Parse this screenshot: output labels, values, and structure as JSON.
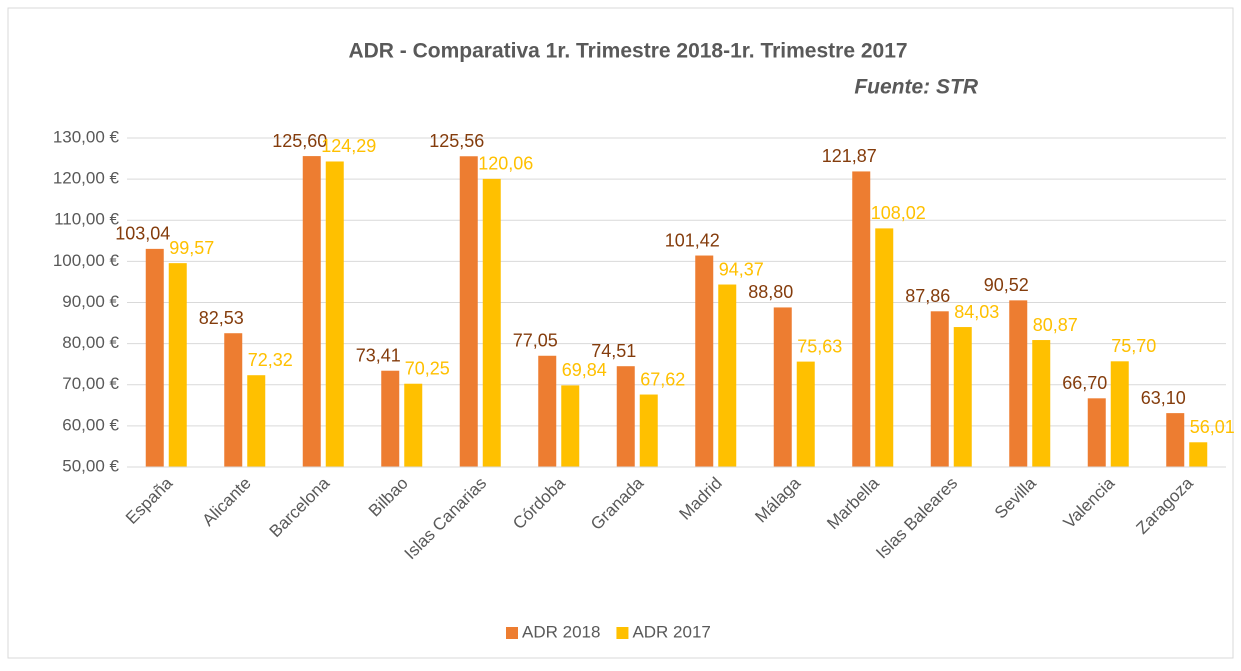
{
  "chart_data": {
    "type": "bar",
    "title": "ADR - Comparativa 1r. Trimestre 2018-1r. Trimestre 2017",
    "subtitle": "Fuente: STR",
    "categories": [
      "España",
      "Alicante",
      "Barcelona",
      "Bilbao",
      "Islas Canarias",
      "Córdoba",
      "Granada",
      "Madrid",
      "Málaga",
      "Marbella",
      "Islas Baleares",
      "Sevilla",
      "Valencia",
      "Zaragoza"
    ],
    "series": [
      {
        "name": "ADR 2018",
        "color": "#ed7d31",
        "label_color": "#843c0c",
        "values": [
          103.04,
          82.53,
          125.6,
          73.41,
          125.56,
          77.05,
          74.51,
          101.42,
          88.8,
          121.87,
          87.86,
          90.52,
          66.7,
          63.1
        ],
        "value_labels": [
          "103,04",
          "82,53",
          "125,60",
          "73,41",
          "125,56",
          "77,05",
          "74,51",
          "101,42",
          "88,80",
          "121,87",
          "87,86",
          "90,52",
          "66,70",
          "63,10"
        ]
      },
      {
        "name": "ADR 2017",
        "color": "#ffc000",
        "label_color": "#ffc000",
        "values": [
          99.57,
          72.32,
          124.29,
          70.25,
          120.06,
          69.84,
          67.62,
          94.37,
          75.63,
          108.02,
          84.03,
          80.87,
          75.7,
          56.01
        ],
        "value_labels": [
          "99,57",
          "72,32",
          "124,29",
          "70,25",
          "120,06",
          "69,84",
          "67,62",
          "94,37",
          "75,63",
          "108,02",
          "84,03",
          "80,87",
          "75,70",
          "56,01"
        ]
      }
    ],
    "ylim": [
      50,
      130
    ],
    "yticks": [
      {
        "value": 50,
        "label": "50,00 €"
      },
      {
        "value": 60,
        "label": "60,00 €"
      },
      {
        "value": 70,
        "label": "70,00 €"
      },
      {
        "value": 80,
        "label": "80,00 €"
      },
      {
        "value": 90,
        "label": "90,00 €"
      },
      {
        "value": 100,
        "label": "100,00 €"
      },
      {
        "value": 110,
        "label": "110,00 €"
      },
      {
        "value": 120,
        "label": "120,00 €"
      },
      {
        "value": 130,
        "label": "130,00 €"
      }
    ],
    "grid": true,
    "legend": "bottom"
  }
}
